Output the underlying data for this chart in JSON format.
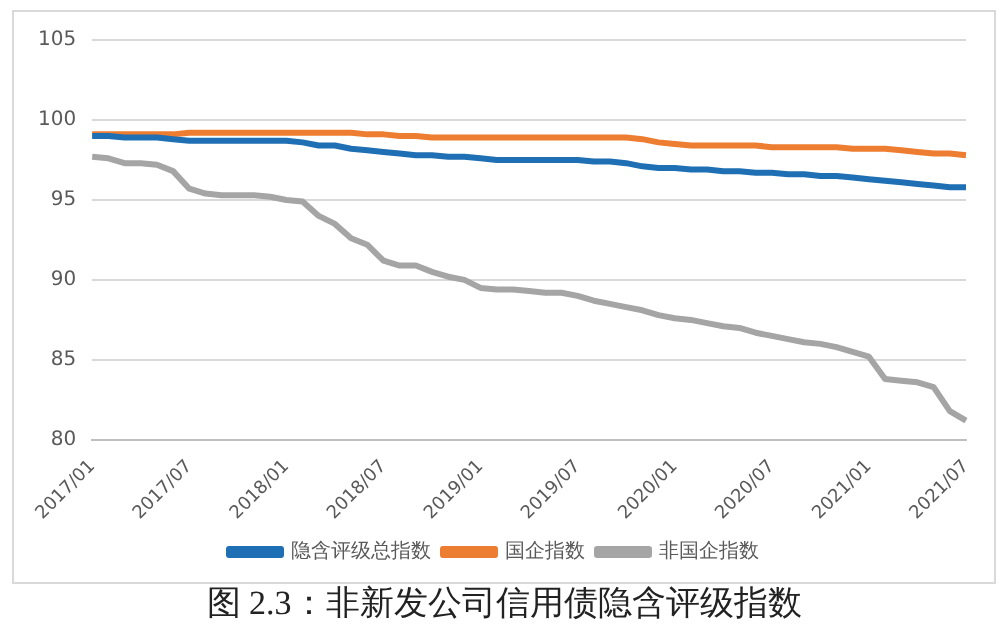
{
  "chart_data": {
    "type": "line",
    "title": "图 2.3：非新发公司信用债隐含评级指数",
    "categories": [
      "2017/01",
      null,
      null,
      null,
      null,
      null,
      "2017/07",
      null,
      null,
      null,
      null,
      null,
      "2018/01",
      null,
      null,
      null,
      null,
      null,
      "2018/07",
      null,
      null,
      null,
      null,
      null,
      "2019/01",
      null,
      null,
      null,
      null,
      null,
      "2019/07",
      null,
      null,
      null,
      null,
      null,
      "2020/01",
      null,
      null,
      null,
      null,
      null,
      "2020/07",
      null,
      null,
      null,
      null,
      null,
      "2021/01",
      null,
      null,
      null,
      null,
      null,
      "2021/07"
    ],
    "series": [
      {
        "name": "隐含评级总指数",
        "color": "#1f6fb4",
        "values": [
          99.0,
          99.0,
          98.9,
          98.9,
          98.9,
          98.8,
          98.7,
          98.7,
          98.7,
          98.7,
          98.7,
          98.7,
          98.7,
          98.6,
          98.4,
          98.4,
          98.2,
          98.1,
          98.0,
          97.9,
          97.8,
          97.8,
          97.7,
          97.7,
          97.6,
          97.5,
          97.5,
          97.5,
          97.5,
          97.5,
          97.5,
          97.4,
          97.4,
          97.3,
          97.1,
          97.0,
          97.0,
          96.9,
          96.9,
          96.8,
          96.8,
          96.7,
          96.7,
          96.6,
          96.6,
          96.5,
          96.5,
          96.4,
          96.3,
          96.2,
          96.1,
          96.0,
          95.9,
          95.8,
          95.8
        ]
      },
      {
        "name": "国企指数",
        "color": "#ed7d31",
        "values": [
          99.1,
          99.1,
          99.1,
          99.1,
          99.1,
          99.1,
          99.2,
          99.2,
          99.2,
          99.2,
          99.2,
          99.2,
          99.2,
          99.2,
          99.2,
          99.2,
          99.2,
          99.1,
          99.1,
          99.0,
          99.0,
          98.9,
          98.9,
          98.9,
          98.9,
          98.9,
          98.9,
          98.9,
          98.9,
          98.9,
          98.9,
          98.9,
          98.9,
          98.9,
          98.8,
          98.6,
          98.5,
          98.4,
          98.4,
          98.4,
          98.4,
          98.4,
          98.3,
          98.3,
          98.3,
          98.3,
          98.3,
          98.2,
          98.2,
          98.2,
          98.1,
          98.0,
          97.9,
          97.9,
          97.8
        ]
      },
      {
        "name": "非国企指数",
        "color": "#a5a5a5",
        "values": [
          97.7,
          97.6,
          97.3,
          97.3,
          97.2,
          96.8,
          95.7,
          95.4,
          95.3,
          95.3,
          95.3,
          95.2,
          95.0,
          94.9,
          94.0,
          93.5,
          92.6,
          92.2,
          91.2,
          90.9,
          90.9,
          90.5,
          90.2,
          90.0,
          89.5,
          89.4,
          89.4,
          89.3,
          89.2,
          89.2,
          89.0,
          88.7,
          88.5,
          88.3,
          88.1,
          87.8,
          87.6,
          87.5,
          87.3,
          87.1,
          87.0,
          86.7,
          86.5,
          86.3,
          86.1,
          86.0,
          85.8,
          85.5,
          85.2,
          83.8,
          83.7,
          83.6,
          83.3,
          81.8,
          81.2
        ]
      }
    ],
    "ylim": [
      80,
      105
    ],
    "yticks": [
      80,
      85,
      90,
      95,
      100,
      105
    ],
    "grid": "y",
    "legend": "bottom",
    "marker": "none",
    "line_style": "solid"
  }
}
